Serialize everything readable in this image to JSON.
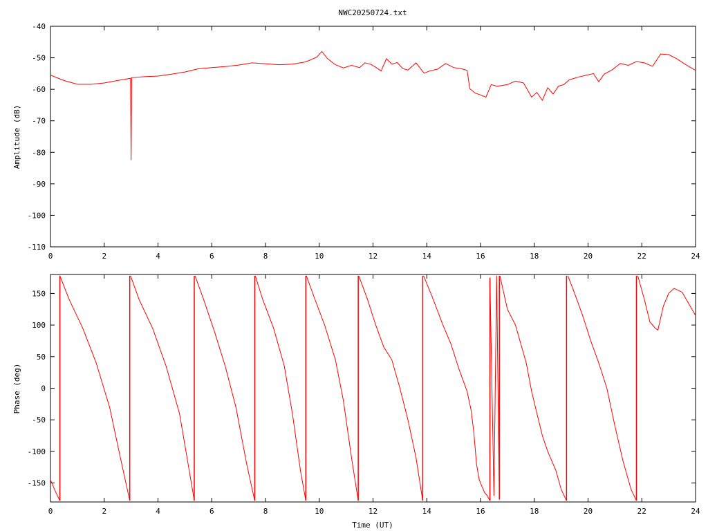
{
  "chart_data": [
    {
      "type": "line",
      "title": "NWC20250724.txt",
      "xlabel": "",
      "ylabel": "Amplitude (dB)",
      "xlim": [
        0,
        24
      ],
      "ylim": [
        -110,
        -40
      ],
      "xticks": [
        "0",
        "2",
        "4",
        "6",
        "8",
        "10",
        "12",
        "14",
        "16",
        "18",
        "20",
        "22",
        "24"
      ],
      "yticks": [
        "-40",
        "-50",
        "-60",
        "-70",
        "-80",
        "-90",
        "-100",
        "-110"
      ],
      "line_color": "#ff0000",
      "series": [
        {
          "x": [
            0,
            0.5,
            1,
            1.5,
            2,
            2.5,
            2.98,
            3.0,
            3.02,
            3.5,
            4,
            4.5,
            5,
            5.5,
            6,
            6.5,
            7,
            7.5,
            8,
            8.5,
            9,
            9.5,
            9.9,
            10.1,
            10.3,
            10.6,
            10.9,
            11.2,
            11.5,
            11.7,
            11.9,
            12.1,
            12.3,
            12.5,
            12.7,
            12.9,
            13.1,
            13.3,
            13.6,
            13.9,
            14.1,
            14.4,
            14.7,
            15.0,
            15.3,
            15.5,
            15.6,
            15.8,
            16.0,
            16.2,
            16.4,
            16.6,
            16.8,
            17.0,
            17.3,
            17.6,
            17.9,
            18.1,
            18.3,
            18.5,
            18.7,
            18.9,
            19.1,
            19.3,
            19.6,
            19.9,
            20.2,
            20.4,
            20.6,
            20.9,
            21.2,
            21.5,
            21.8,
            22.1,
            22.4,
            22.7,
            23.0,
            23.3,
            23.6,
            24
          ],
          "y": [
            -55.5,
            -57.2,
            -58.4,
            -58.4,
            -58.0,
            -57.2,
            -56.5,
            -82.5,
            -56.3,
            -56.0,
            -55.8,
            -55.2,
            -54.5,
            -53.5,
            -53.1,
            -52.8,
            -52.3,
            -51.6,
            -51.9,
            -52.2,
            -52.0,
            -51.3,
            -49.8,
            -48.0,
            -50.2,
            -52.2,
            -53.2,
            -52.4,
            -53.1,
            -51.6,
            -52.0,
            -53.0,
            -54.2,
            -50.3,
            -52.0,
            -51.5,
            -53.4,
            -53.9,
            -51.6,
            -54.9,
            -54.2,
            -53.6,
            -51.8,
            -53.1,
            -53.5,
            -54.0,
            -59.8,
            -61.2,
            -61.8,
            -62.5,
            -58.5,
            -59.0,
            -58.8,
            -58.5,
            -57.4,
            -58.0,
            -62.5,
            -61.0,
            -63.5,
            -59.5,
            -61.5,
            -59.0,
            -58.5,
            -57.0,
            -56.2,
            -55.6,
            -55.0,
            -57.6,
            -55.2,
            -53.8,
            -51.8,
            -52.4,
            -51.2,
            -51.6,
            -52.7,
            -48.8,
            -49.0,
            -50.3,
            -52.0,
            -54.0
          ]
        }
      ]
    },
    {
      "type": "line",
      "title": "",
      "xlabel": "Time (UT)",
      "ylabel": "Phase (deg)",
      "xlim": [
        0,
        24
      ],
      "ylim": [
        -180,
        180
      ],
      "xticks": [
        "0",
        "2",
        "4",
        "6",
        "8",
        "10",
        "12",
        "14",
        "16",
        "18",
        "20",
        "22",
        "24"
      ],
      "yticks": [
        "150",
        "100",
        "50",
        "0",
        "-50",
        "-100",
        "-150"
      ],
      "line_color": "#ff0000",
      "series": [
        {
          "segments": [
            {
              "x": [
                0,
                0.2,
                0.35
              ],
              "y": [
                -145,
                -165,
                -178
              ]
            },
            {
              "x": [
                0.35,
                0.7,
                1.2,
                1.7,
                2.2,
                2.6,
                2.95
              ],
              "y": [
                178,
                140,
                95,
                40,
                -30,
                -110,
                -178
              ]
            },
            {
              "x": [
                2.98,
                3.3,
                3.8,
                4.3,
                4.8,
                5.1,
                5.35
              ],
              "y": [
                178,
                140,
                95,
                35,
                -40,
                -115,
                -178
              ]
            },
            {
              "x": [
                5.38,
                5.7,
                6.1,
                6.5,
                6.9,
                7.3,
                7.6
              ],
              "y": [
                178,
                140,
                90,
                35,
                -30,
                -120,
                -178
              ]
            },
            {
              "x": [
                7.62,
                7.9,
                8.3,
                8.7,
                9.0,
                9.3,
                9.5
              ],
              "y": [
                178,
                140,
                95,
                35,
                -40,
                -130,
                -178
              ]
            },
            {
              "x": [
                9.52,
                9.8,
                10.2,
                10.6,
                10.9,
                11.2,
                11.45
              ],
              "y": [
                178,
                145,
                100,
                45,
                -20,
                -110,
                -178
              ]
            },
            {
              "x": [
                11.47,
                11.8,
                12.1,
                12.4,
                12.7,
                13.0,
                13.3,
                13.6,
                13.85
              ],
              "y": [
                178,
                140,
                100,
                65,
                45,
                0,
                -50,
                -110,
                -178
              ]
            },
            {
              "x": [
                13.88,
                14.2,
                14.6,
                14.9,
                15.2,
                15.5,
                15.65,
                15.75,
                15.85,
                15.95,
                16.05,
                16.15,
                16.25,
                16.35
              ],
              "y": [
                178,
                145,
                100,
                70,
                30,
                -5,
                -35,
                -70,
                -120,
                -145,
                -155,
                -165,
                -170,
                -178
              ]
            },
            {
              "x": [
                16.35,
                16.5,
                16.6,
                16.7
              ],
              "y": [
                175,
                -170,
                178,
                -176
              ]
            },
            {
              "x": [
                16.72,
                17.0,
                17.3,
                17.5,
                17.7,
                17.9,
                18.1,
                18.3,
                18.5,
                18.8,
                19.0,
                19.2
              ],
              "y": [
                178,
                125,
                100,
                70,
                40,
                -5,
                -40,
                -75,
                -100,
                -130,
                -160,
                -178
              ]
            },
            {
              "x": [
                19.25,
                19.5,
                19.8,
                20.1,
                20.4,
                20.7,
                21.0,
                21.3,
                21.6,
                21.8
              ],
              "y": [
                178,
                150,
                115,
                75,
                40,
                0,
                -60,
                -115,
                -160,
                -178
              ]
            },
            {
              "x": [
                21.85,
                22.1,
                22.3,
                22.5,
                22.6,
                22.8,
                23.0,
                23.2,
                23.5,
                23.8,
                24
              ],
              "y": [
                178,
                140,
                105,
                95,
                92,
                130,
                150,
                158,
                152,
                130,
                115
              ]
            }
          ]
        }
      ]
    }
  ]
}
